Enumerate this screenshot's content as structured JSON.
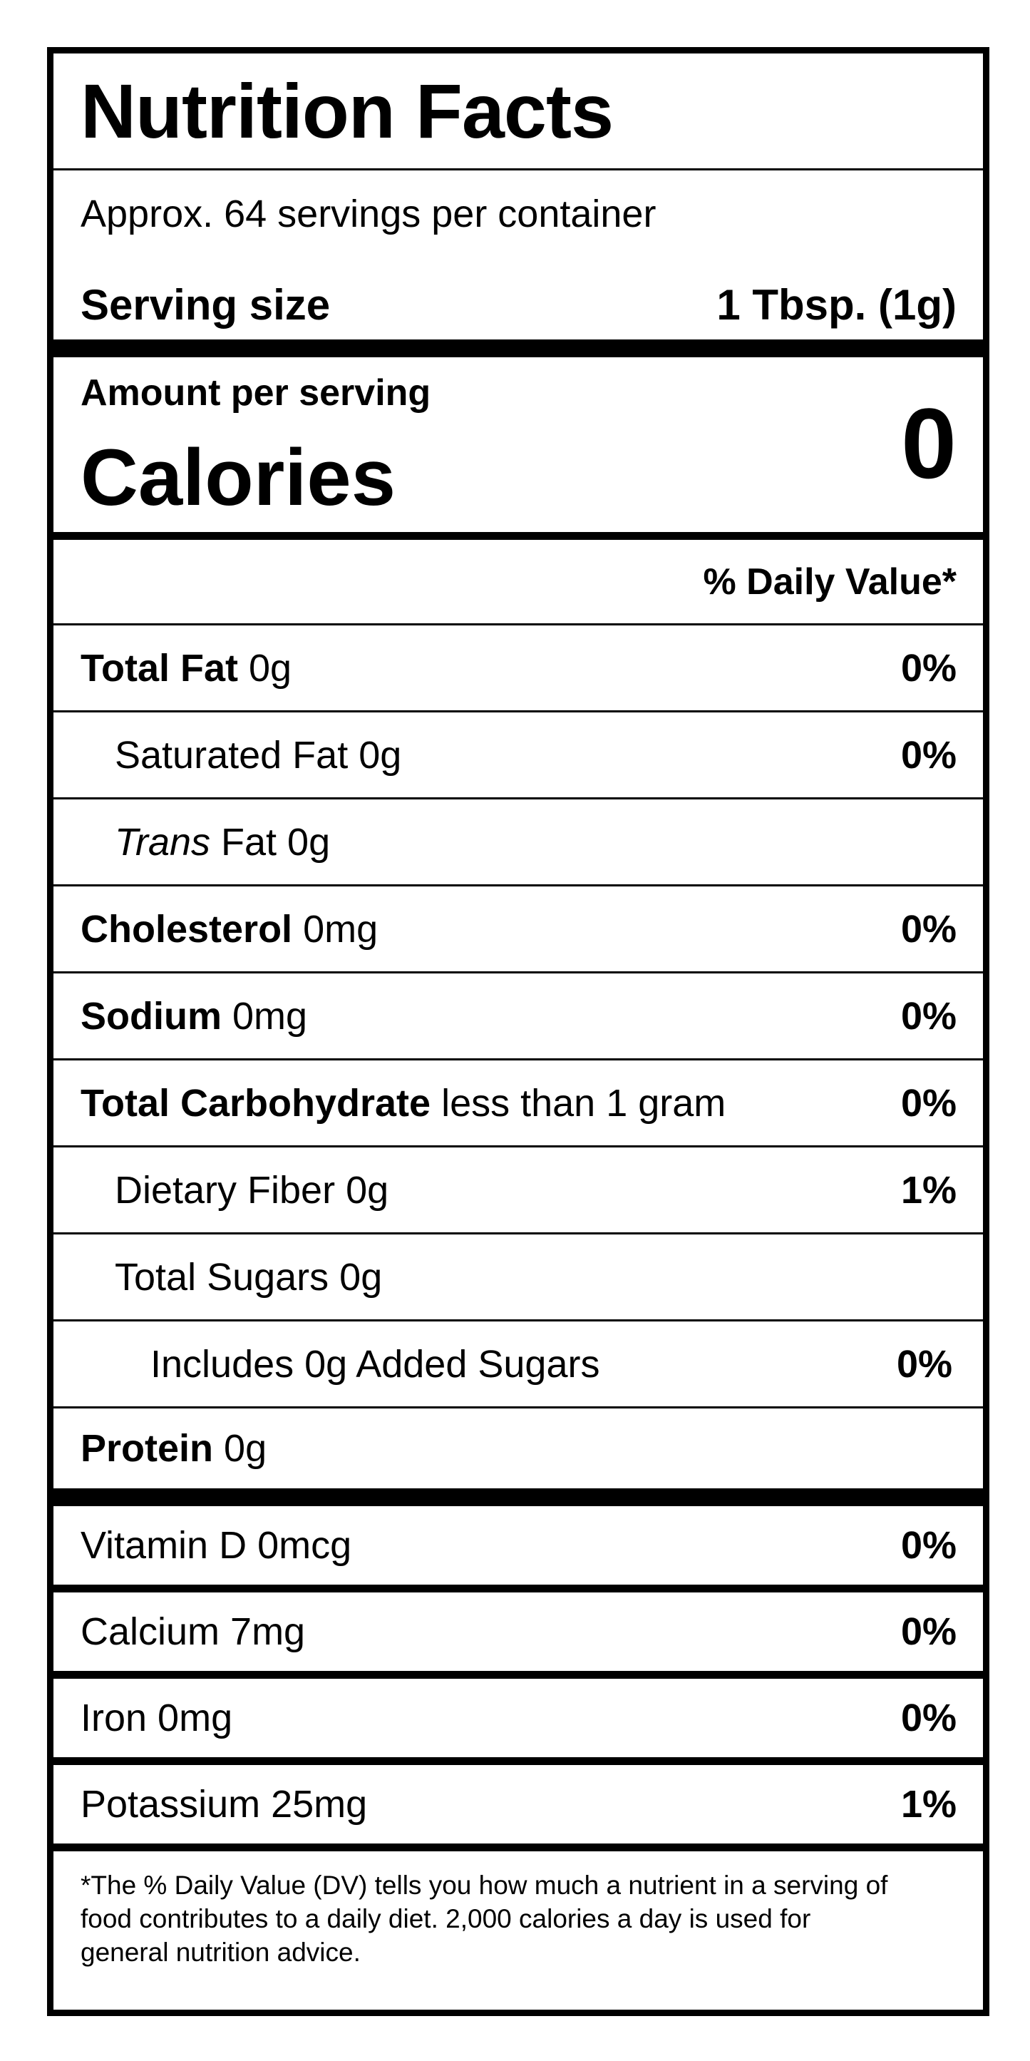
{
  "title": "Nutrition Facts",
  "servings_per_container": "Approx. 64 servings per container",
  "serving_size": {
    "label": "Serving size",
    "value": "1 Tbsp. (1g)"
  },
  "amount_per_serving": "Amount per serving",
  "calories": {
    "label": "Calories",
    "value": "0"
  },
  "daily_value_header": "% Daily Value*",
  "nutrients": [
    {
      "bold": "Total Fat",
      "italic": "",
      "text": " 0g",
      "dv": "0%",
      "indent": 0
    },
    {
      "bold": "",
      "italic": "",
      "text": "Saturated Fat 0g",
      "dv": "0%",
      "indent": 1
    },
    {
      "bold": "",
      "italic": "Trans",
      "text": " Fat 0g",
      "dv": "",
      "indent": 1
    },
    {
      "bold": "Cholesterol",
      "italic": "",
      "text": " 0mg",
      "dv": "0%",
      "indent": 0
    },
    {
      "bold": "Sodium",
      "italic": "",
      "text": " 0mg",
      "dv": "0%",
      "indent": 0
    },
    {
      "bold": "Total Carbohydrate",
      "italic": "",
      "text": " less than 1 gram",
      "dv": "0%",
      "indent": 0
    },
    {
      "bold": "",
      "italic": "",
      "text": "Dietary Fiber 0g",
      "dv": "1%",
      "indent": 1
    },
    {
      "bold": "",
      "italic": "",
      "text": "Total Sugars 0g",
      "dv": "",
      "indent": 1
    },
    {
      "bold": "",
      "italic": "",
      "text": "Includes 0g Added Sugars",
      "dv": "0%",
      "indent": 2
    },
    {
      "bold": "Protein",
      "italic": "",
      "text": " 0g",
      "dv": "",
      "indent": 0
    }
  ],
  "vitamins": [
    {
      "text": "Vitamin D 0mcg",
      "dv": "0%"
    },
    {
      "text": "Calcium 7mg",
      "dv": "0%"
    },
    {
      "text": "Iron 0mg",
      "dv": "0%"
    },
    {
      "text": "Potassium 25mg",
      "dv": "1%"
    }
  ],
  "footnote": "*The % Daily Value (DV) tells you how much a nutrient in a serving of food contributes to a daily diet. 2,000 calories a day is used for general nutrition advice."
}
